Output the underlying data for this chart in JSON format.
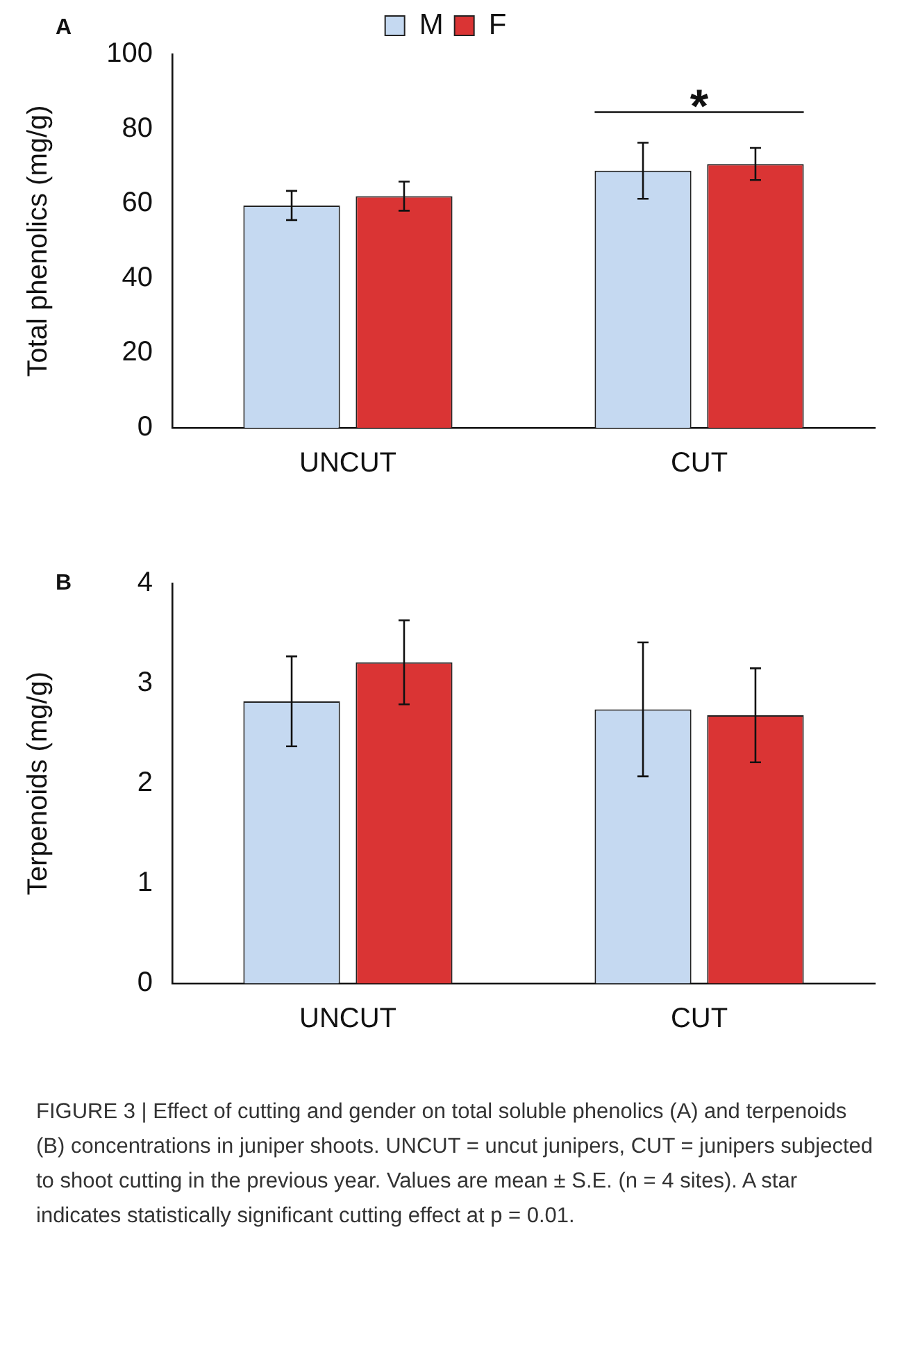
{
  "chart_data": [
    {
      "type": "bar",
      "title": "A",
      "ylabel": "Total phenolics (mg/g)",
      "categories": [
        "UNCUT",
        "CUT"
      ],
      "series": [
        {
          "name": "M",
          "color": "#c5d9f1",
          "values": [
            59.5,
            68.8
          ],
          "errors": [
            3.9,
            7.5
          ]
        },
        {
          "name": "F",
          "color": "#da3434",
          "values": [
            62.0,
            70.6
          ],
          "errors": [
            3.9,
            4.3
          ]
        }
      ],
      "ylim": [
        0,
        100
      ],
      "yticks": [
        0,
        20,
        40,
        60,
        80,
        100
      ],
      "grid": false,
      "legend": "top",
      "annotations": [
        "*"
      ]
    },
    {
      "type": "bar",
      "title": "B",
      "ylabel": "Terpenoids (mg/g)",
      "categories": [
        "UNCUT",
        "CUT"
      ],
      "series": [
        {
          "color": "#c5d9f1",
          "values": [
            2.82,
            2.74
          ],
          "errors": [
            0.45,
            0.67
          ]
        },
        {
          "color": "#da3434",
          "values": [
            3.21,
            2.68
          ],
          "errors": [
            0.42,
            0.47
          ]
        }
      ],
      "ylim": [
        0,
        4
      ],
      "yticks": [
        0,
        1,
        2,
        3,
        4
      ],
      "grid": false,
      "legend": false,
      "annotations": [
        "FIGURE 3 | Effect of cutting and gender on total soluble phenolics (A) and terpenoids (B) concentrations in juniper shoots. UNCUT = uncut junipers, CUT = junipers subjected to shoot cutting in the previous year. Values are mean ± S.E. (n = 4 sites). A star indicates statistically significant cutting effect at p = 0.01."
      ]
    }
  ]
}
